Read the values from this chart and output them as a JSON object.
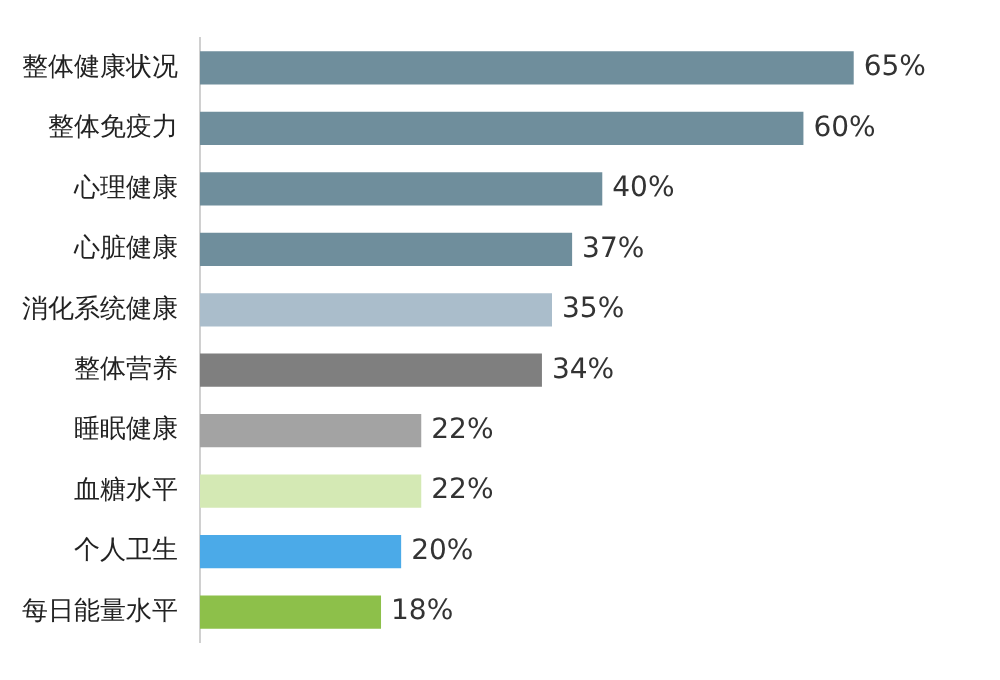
{
  "chart_data": {
    "type": "bar",
    "orientation": "horizontal",
    "categories": [
      "整体健康状况",
      "整体免疫力",
      "心理健康",
      "心脏健康",
      "消化系统健康",
      "整体营养",
      "睡眠健康",
      "血糖水平",
      "个人卫生",
      "每日能量水平"
    ],
    "values": [
      65,
      60,
      40,
      37,
      35,
      34,
      22,
      22,
      20,
      18
    ],
    "colors": [
      "#6f8e9c",
      "#6f8e9c",
      "#6f8e9c",
      "#6f8e9c",
      "#aabdcb",
      "#7f7f7f",
      "#a3a3a3",
      "#d4e9b4",
      "#4baae8",
      "#8dc04a"
    ],
    "value_labels": [
      "65%",
      "60%",
      "40%",
      "37%",
      "35%",
      "34%",
      "22%",
      "22%",
      "20%",
      "18%"
    ]
  }
}
